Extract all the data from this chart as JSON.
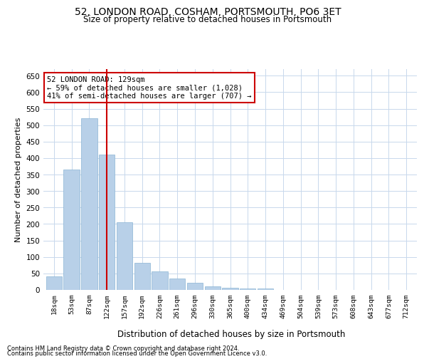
{
  "title1": "52, LONDON ROAD, COSHAM, PORTSMOUTH, PO6 3ET",
  "title2": "Size of property relative to detached houses in Portsmouth",
  "xlabel": "Distribution of detached houses by size in Portsmouth",
  "ylabel": "Number of detached properties",
  "footnote1": "Contains HM Land Registry data © Crown copyright and database right 2024.",
  "footnote2": "Contains public sector information licensed under the Open Government Licence v3.0.",
  "annotation_title": "52 LONDON ROAD: 129sqm",
  "annotation_line1": "← 59% of detached houses are smaller (1,028)",
  "annotation_line2": "41% of semi-detached houses are larger (707) →",
  "bar_color": "#b8d0e8",
  "bar_edge_color": "#8ab4d4",
  "marker_line_color": "#cc0000",
  "annotation_box_color": "#ffffff",
  "annotation_box_edge": "#cc0000",
  "background_color": "#ffffff",
  "grid_color": "#c8d8ec",
  "categories": [
    "18sqm",
    "53sqm",
    "87sqm",
    "122sqm",
    "157sqm",
    "192sqm",
    "226sqm",
    "261sqm",
    "296sqm",
    "330sqm",
    "365sqm",
    "400sqm",
    "434sqm",
    "469sqm",
    "504sqm",
    "539sqm",
    "573sqm",
    "608sqm",
    "643sqm",
    "677sqm",
    "712sqm"
  ],
  "values": [
    40,
    365,
    520,
    410,
    205,
    82,
    56,
    35,
    22,
    10,
    7,
    5,
    5,
    1,
    1,
    0,
    1,
    0,
    0,
    0,
    1
  ],
  "marker_bin_index": 3,
  "ylim": [
    0,
    670
  ],
  "yticks": [
    0,
    50,
    100,
    150,
    200,
    250,
    300,
    350,
    400,
    450,
    500,
    550,
    600,
    650
  ]
}
